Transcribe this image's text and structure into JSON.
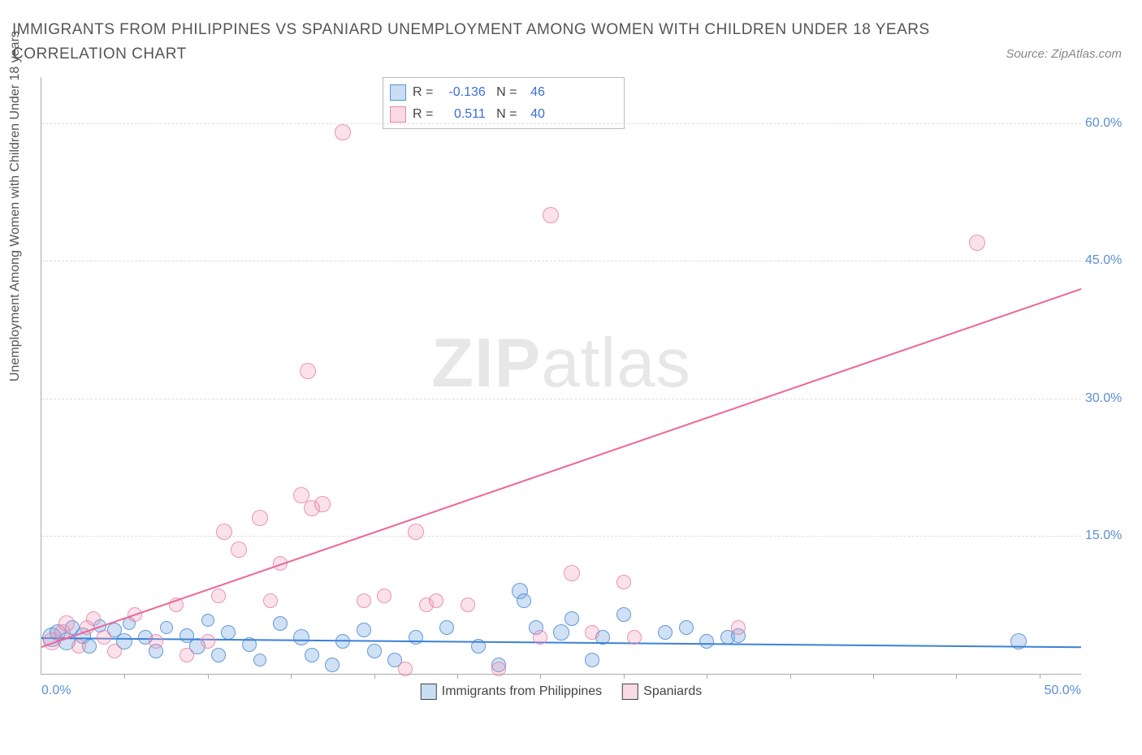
{
  "title": "IMMIGRANTS FROM PHILIPPINES VS SPANIARD UNEMPLOYMENT AMONG WOMEN WITH CHILDREN UNDER 18 YEARS CORRELATION CHART",
  "source_label": "Source: ZipAtlas.com",
  "y_axis_label": "Unemployment Among Women with Children Under 18 years",
  "watermark_bold": "ZIP",
  "watermark_light": "atlas",
  "chart": {
    "type": "scatter",
    "xlim": [
      0,
      50
    ],
    "ylim": [
      0,
      65
    ],
    "x_ticks": [
      0,
      50
    ],
    "x_tick_labels": [
      "0.0%",
      "50.0%"
    ],
    "x_minor_ticks": [
      4,
      8,
      12,
      16,
      20,
      24,
      28,
      32,
      36,
      40,
      44,
      48
    ],
    "y_ticks": [
      15,
      30,
      45,
      60
    ],
    "y_tick_labels": [
      "15.0%",
      "30.0%",
      "45.0%",
      "60.0%"
    ],
    "background_color": "#ffffff",
    "grid_color": "#dddddd",
    "series": [
      {
        "name": "Immigrants from Philippines",
        "color_fill": "rgba(120,170,225,0.35)",
        "color_stroke": "rgba(80,140,210,0.85)",
        "marker_radius": 8,
        "R": "-0.136",
        "N": "46",
        "trend": {
          "x1": 0,
          "y1": 4.0,
          "x2": 50,
          "y2": 3.0,
          "color": "#3b82d6"
        },
        "points": [
          {
            "x": 0.5,
            "y": 4.0,
            "r": 11
          },
          {
            "x": 0.8,
            "y": 4.5,
            "r": 9
          },
          {
            "x": 1.2,
            "y": 3.5,
            "r": 10
          },
          {
            "x": 1.5,
            "y": 5.0,
            "r": 8
          },
          {
            "x": 2.0,
            "y": 4.2,
            "r": 9
          },
          {
            "x": 2.3,
            "y": 3.0,
            "r": 8
          },
          {
            "x": 2.8,
            "y": 5.2,
            "r": 7
          },
          {
            "x": 3.5,
            "y": 4.8,
            "r": 8
          },
          {
            "x": 4.0,
            "y": 3.5,
            "r": 9
          },
          {
            "x": 4.2,
            "y": 5.5,
            "r": 7
          },
          {
            "x": 5.0,
            "y": 4.0,
            "r": 8
          },
          {
            "x": 5.5,
            "y": 2.5,
            "r": 8
          },
          {
            "x": 6.0,
            "y": 5.0,
            "r": 7
          },
          {
            "x": 7.0,
            "y": 4.2,
            "r": 8
          },
          {
            "x": 7.5,
            "y": 3.0,
            "r": 9
          },
          {
            "x": 8.0,
            "y": 5.8,
            "r": 7
          },
          {
            "x": 8.5,
            "y": 2.0,
            "r": 8
          },
          {
            "x": 9.0,
            "y": 4.5,
            "r": 8
          },
          {
            "x": 10.0,
            "y": 3.2,
            "r": 8
          },
          {
            "x": 10.5,
            "y": 1.5,
            "r": 7
          },
          {
            "x": 11.5,
            "y": 5.5,
            "r": 8
          },
          {
            "x": 12.5,
            "y": 4.0,
            "r": 9
          },
          {
            "x": 13.0,
            "y": 2.0,
            "r": 8
          },
          {
            "x": 14.0,
            "y": 1.0,
            "r": 8
          },
          {
            "x": 14.5,
            "y": 3.5,
            "r": 8
          },
          {
            "x": 15.5,
            "y": 4.8,
            "r": 8
          },
          {
            "x": 16.0,
            "y": 2.5,
            "r": 8
          },
          {
            "x": 17.0,
            "y": 1.5,
            "r": 8
          },
          {
            "x": 18.0,
            "y": 4.0,
            "r": 8
          },
          {
            "x": 19.5,
            "y": 5.0,
            "r": 8
          },
          {
            "x": 21.0,
            "y": 3.0,
            "r": 8
          },
          {
            "x": 22.0,
            "y": 1.0,
            "r": 8
          },
          {
            "x": 23.0,
            "y": 9.0,
            "r": 9
          },
          {
            "x": 23.2,
            "y": 8.0,
            "r": 8
          },
          {
            "x": 23.8,
            "y": 5.0,
            "r": 8
          },
          {
            "x": 25.0,
            "y": 4.5,
            "r": 9
          },
          {
            "x": 25.5,
            "y": 6.0,
            "r": 8
          },
          {
            "x": 26.5,
            "y": 1.5,
            "r": 8
          },
          {
            "x": 27.0,
            "y": 4.0,
            "r": 8
          },
          {
            "x": 28.0,
            "y": 6.5,
            "r": 8
          },
          {
            "x": 30.0,
            "y": 4.5,
            "r": 8
          },
          {
            "x": 31.0,
            "y": 5.0,
            "r": 8
          },
          {
            "x": 32.0,
            "y": 3.5,
            "r": 8
          },
          {
            "x": 33.0,
            "y": 4.0,
            "r": 8
          },
          {
            "x": 33.5,
            "y": 4.2,
            "r": 8
          },
          {
            "x": 47.0,
            "y": 3.5,
            "r": 9
          }
        ]
      },
      {
        "name": "Spaniards",
        "color_fill": "rgba(240,150,180,0.28)",
        "color_stroke": "rgba(230,120,160,0.75)",
        "marker_radius": 8,
        "R": "0.511",
        "N": "40",
        "trend": {
          "x1": 0,
          "y1": 3.0,
          "x2": 50,
          "y2": 42.0,
          "color": "#ec6698"
        },
        "points": [
          {
            "x": 0.5,
            "y": 3.5,
            "r": 10
          },
          {
            "x": 1.0,
            "y": 4.5,
            "r": 9
          },
          {
            "x": 1.2,
            "y": 5.5,
            "r": 9
          },
          {
            "x": 1.8,
            "y": 3.0,
            "r": 8
          },
          {
            "x": 2.2,
            "y": 5.0,
            "r": 8
          },
          {
            "x": 2.5,
            "y": 6.0,
            "r": 8
          },
          {
            "x": 3.0,
            "y": 4.0,
            "r": 8
          },
          {
            "x": 3.5,
            "y": 2.5,
            "r": 8
          },
          {
            "x": 4.5,
            "y": 6.5,
            "r": 8
          },
          {
            "x": 5.5,
            "y": 3.5,
            "r": 8
          },
          {
            "x": 6.5,
            "y": 7.5,
            "r": 8
          },
          {
            "x": 7.0,
            "y": 2.0,
            "r": 8
          },
          {
            "x": 8.0,
            "y": 3.5,
            "r": 8
          },
          {
            "x": 8.5,
            "y": 8.5,
            "r": 8
          },
          {
            "x": 8.8,
            "y": 15.5,
            "r": 9
          },
          {
            "x": 9.5,
            "y": 13.5,
            "r": 9
          },
          {
            "x": 10.5,
            "y": 17.0,
            "r": 9
          },
          {
            "x": 11.0,
            "y": 8.0,
            "r": 8
          },
          {
            "x": 11.5,
            "y": 12.0,
            "r": 8
          },
          {
            "x": 12.5,
            "y": 19.5,
            "r": 9
          },
          {
            "x": 13.0,
            "y": 18.0,
            "r": 9
          },
          {
            "x": 13.5,
            "y": 18.5,
            "r": 9
          },
          {
            "x": 12.8,
            "y": 33.0,
            "r": 9
          },
          {
            "x": 14.5,
            "y": 59.0,
            "r": 9
          },
          {
            "x": 15.5,
            "y": 8.0,
            "r": 8
          },
          {
            "x": 16.5,
            "y": 8.5,
            "r": 8
          },
          {
            "x": 17.5,
            "y": 0.5,
            "r": 8
          },
          {
            "x": 18.0,
            "y": 15.5,
            "r": 9
          },
          {
            "x": 18.5,
            "y": 7.5,
            "r": 8
          },
          {
            "x": 19.0,
            "y": 8.0,
            "r": 8
          },
          {
            "x": 20.5,
            "y": 7.5,
            "r": 8
          },
          {
            "x": 22.0,
            "y": 0.5,
            "r": 8
          },
          {
            "x": 24.0,
            "y": 4.0,
            "r": 8
          },
          {
            "x": 24.5,
            "y": 50.0,
            "r": 9
          },
          {
            "x": 25.5,
            "y": 11.0,
            "r": 9
          },
          {
            "x": 26.5,
            "y": 4.5,
            "r": 8
          },
          {
            "x": 28.0,
            "y": 10.0,
            "r": 8
          },
          {
            "x": 28.5,
            "y": 4.0,
            "r": 8
          },
          {
            "x": 33.5,
            "y": 5.0,
            "r": 8
          },
          {
            "x": 45.0,
            "y": 47.0,
            "r": 9
          }
        ]
      }
    ]
  },
  "legend_top": {
    "rows": [
      {
        "swatch": "blue",
        "r_label": "R =",
        "r_val": "-0.136",
        "n_label": "N =",
        "n_val": "46"
      },
      {
        "swatch": "pink",
        "r_label": "R =",
        "r_val": "0.511",
        "n_label": "N =",
        "n_val": "40"
      }
    ]
  },
  "legend_bottom": [
    {
      "swatch": "blue",
      "label": "Immigrants from Philippines"
    },
    {
      "swatch": "pink",
      "label": "Spaniards"
    }
  ]
}
